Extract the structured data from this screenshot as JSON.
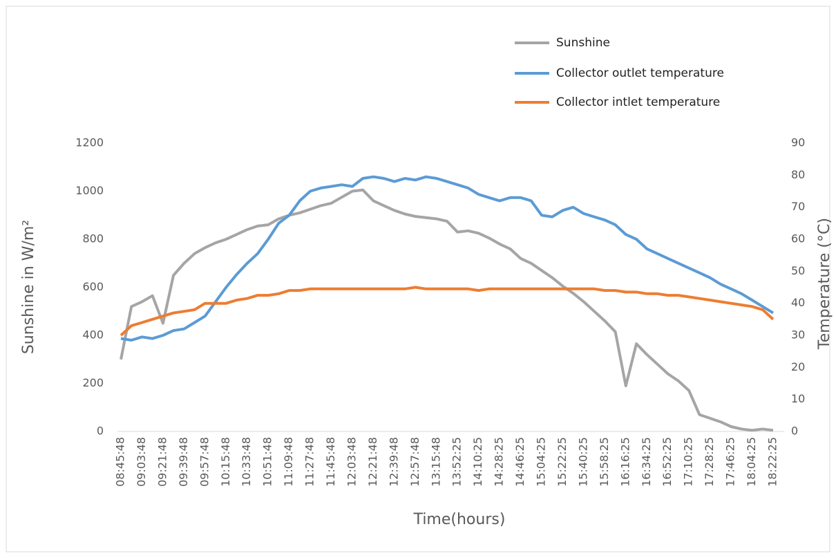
{
  "chart_data": {
    "type": "line",
    "x_label": "Time(hours)",
    "y_label": "Sunshine in W/m²",
    "y2_label": "Temperature (°C)",
    "categories": [
      "08:45:48",
      null,
      "09:03:48",
      null,
      "09:21:48",
      null,
      "09:39:48",
      null,
      "09:57:48",
      null,
      "10:15:48",
      null,
      "10:33:48",
      null,
      "10:51:48",
      null,
      "11:09:48",
      null,
      "11:27:48",
      null,
      "11:45:48",
      null,
      "12:03:48",
      null,
      "12:21:48",
      null,
      "12:39:48",
      null,
      "12:57:48",
      null,
      "13:15:48",
      null,
      "13:52:25",
      null,
      "14:10:25",
      null,
      "14:28:25",
      null,
      "14:46:25",
      null,
      "15:04:25",
      null,
      "15:22:25",
      null,
      "15:40:25",
      null,
      "15:58:25",
      null,
      "16:16:25",
      null,
      "16:34:25",
      null,
      "16:52:25",
      null,
      "17:10:25",
      null,
      "17:28:25",
      null,
      "17:46:25",
      null,
      "18:04:25",
      null,
      "18:22:25"
    ],
    "series": [
      {
        "name": "Sunshine",
        "color": "#a5a5a5",
        "values": [
          300,
          520,
          540,
          565,
          450,
          650,
          700,
          740,
          765,
          785,
          800,
          820,
          840,
          855,
          860,
          885,
          900,
          910,
          925,
          940,
          950,
          975,
          1000,
          1005,
          960,
          940,
          920,
          905,
          895,
          890,
          885,
          875,
          830,
          835,
          825,
          805,
          780,
          760,
          720,
          700,
          670,
          640,
          605,
          575,
          540,
          500,
          460,
          415,
          190,
          365,
          320,
          280,
          240,
          210,
          170,
          70,
          55,
          40,
          20,
          10,
          5,
          10,
          5
        ]
      },
      {
        "name": "Collector outlet temperature",
        "color": "#5b9bd5",
        "axis": "y2",
        "values": [
          29,
          28.5,
          29.5,
          29,
          30,
          31.5,
          32,
          34,
          36,
          40.5,
          45,
          49,
          52.5,
          55.5,
          60,
          65,
          67.5,
          72,
          75,
          76,
          76.5,
          77,
          76.5,
          79,
          79.5,
          79,
          78,
          79,
          78.5,
          79.5,
          79,
          78,
          77,
          76,
          74,
          73,
          72,
          73,
          73,
          72,
          67.5,
          67,
          69,
          70,
          68,
          67,
          66,
          64.5,
          61.5,
          60,
          57,
          55.5,
          54,
          52.5,
          51,
          49.5,
          48,
          46,
          44.5,
          43,
          41,
          39,
          37
        ]
      },
      {
        "name": "Collector intlet temperature",
        "color": "#ed7d31",
        "axis": "y2",
        "values": [
          30,
          33,
          34,
          35,
          36,
          37,
          37.5,
          38,
          40,
          40,
          40,
          41,
          41.5,
          42.5,
          42.5,
          43,
          44,
          44,
          44.5,
          44.5,
          44.5,
          44.5,
          44.5,
          44.5,
          44.5,
          44.5,
          44.5,
          44.5,
          45,
          44.5,
          44.5,
          44.5,
          44.5,
          44.5,
          44,
          44.5,
          44.5,
          44.5,
          44.5,
          44.5,
          44.5,
          44.5,
          44.5,
          44.5,
          44.5,
          44.5,
          44,
          44,
          43.5,
          43.5,
          43,
          43,
          42.5,
          42.5,
          42,
          41.5,
          41,
          40.5,
          40,
          39.5,
          39,
          38,
          35
        ]
      }
    ],
    "ylim": [
      0,
      1200
    ],
    "yticks": [
      0,
      200,
      400,
      600,
      800,
      1000,
      1200
    ],
    "y2lim": [
      0,
      90
    ],
    "y2ticks": [
      0,
      10,
      20,
      30,
      40,
      50,
      60,
      70,
      80,
      90
    ],
    "grid": false,
    "legend": "top-right"
  }
}
